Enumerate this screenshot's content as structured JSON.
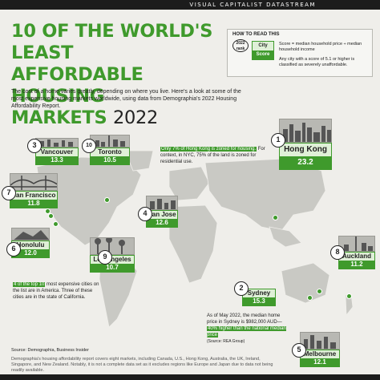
{
  "header": {
    "brand": "VISUAL CAPITALIST DATASTREAM"
  },
  "title": {
    "line1": "10 OF THE WORLD'S LEAST",
    "line2": "AFFORDABLE HOUSING",
    "line3": "MARKETS",
    "year": "2022"
  },
  "legend": {
    "heading": "HOW TO READ THIS",
    "rank_label": "2022 rank",
    "city_label": "City",
    "score_label": "Score",
    "explanation_1": "Score = median household price ÷ median household income",
    "explanation_2": "Any city with a score of 5.1 or higher is classified as severely unaffordable."
  },
  "intro": "The cost of a home varies greatly, depending on where you live. Here's a look at some of the most expensive housing markets worldwide, using data from Demographia's 2022 Housing Affordability Report.",
  "notes": {
    "hongkong_highlight": "Only 7% of Hong Kong is zoned for housing.",
    "hongkong_rest": "For context, in NYC, 75% of the land is zoned for residential use.",
    "america_highlight": "4 of the top 10",
    "america_rest": "most expensive cities on the list are in America. Three of these cities are in the state of California.",
    "sydney_text": "As of May 2022, the median home price in Sydney is $982,000 AUD—",
    "sydney_highlight": "40% higher than the national median price",
    "sydney_source": "(Source: REA Group)"
  },
  "cities": [
    {
      "rank": "1",
      "name": "Hong Kong",
      "score": "23.2"
    },
    {
      "rank": "2",
      "name": "Sydney",
      "score": "15.3"
    },
    {
      "rank": "3",
      "name": "Vancouver",
      "score": "13.3"
    },
    {
      "rank": "4",
      "name": "San Jose",
      "score": "12.6"
    },
    {
      "rank": "5",
      "name": "Melbourne",
      "score": "12.1"
    },
    {
      "rank": "6",
      "name": "Honolulu",
      "score": "12.0"
    },
    {
      "rank": "7",
      "name": "San Francisco",
      "score": "11.8"
    },
    {
      "rank": "8",
      "name": "Auckland",
      "score": "11.2"
    },
    {
      "rank": "9",
      "name": "Los Angeles",
      "score": "10.7"
    },
    {
      "rank": "10",
      "name": "Toronto",
      "score": "10.5"
    }
  ],
  "footer": {
    "source": "Source: Demographia, Business Insider",
    "disclaimer": "Demographia's housing affordability report covers eight markets, including Canada, U.S., Hong Kong, Australia, the UK, Ireland, Singapore, and New Zealand. Notably, it is not a complete data set as it excludes regions like Europe and Japan due to data not being readily available."
  },
  "colors": {
    "accent": "#3f9a2c",
    "background": "#efeeea",
    "light_green": "#dff0d7"
  }
}
